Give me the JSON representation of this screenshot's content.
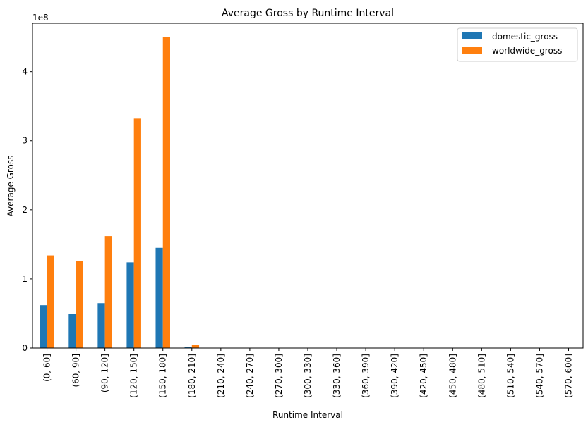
{
  "chart_data": {
    "type": "bar",
    "title": "Average Gross by Runtime Interval",
    "xlabel": "Runtime Interval",
    "ylabel": "Average Gross",
    "y_offset_label": "1e8",
    "ylim": [
      0,
      470000000
    ],
    "yticks": [
      0,
      100000000,
      200000000,
      300000000,
      400000000
    ],
    "ytick_labels": [
      "0",
      "1",
      "2",
      "3",
      "4"
    ],
    "legend_position": "top-right",
    "grid": false,
    "categories": [
      "(0, 60]",
      "(60, 90]",
      "(90, 120]",
      "(120, 150]",
      "(150, 180]",
      "(180, 210]",
      "(210, 240]",
      "(240, 270]",
      "(270, 300]",
      "(300, 330]",
      "(330, 360]",
      "(360, 390]",
      "(390, 420]",
      "(420, 450]",
      "(450, 480]",
      "(480, 510]",
      "(510, 540]",
      "(540, 570]",
      "(570, 600]"
    ],
    "series": [
      {
        "name": "domestic_gross",
        "color": "#1f77b4",
        "values": [
          62000000,
          49000000,
          65000000,
          124000000,
          145000000,
          1000000,
          0,
          0,
          0,
          0,
          0,
          0,
          0,
          0,
          0,
          0,
          0,
          0,
          0
        ]
      },
      {
        "name": "worldwide_gross",
        "color": "#ff7f0e",
        "values": [
          134000000,
          126000000,
          162000000,
          332000000,
          450000000,
          5000000,
          0,
          0,
          0,
          0,
          0,
          0,
          0,
          0,
          0,
          0,
          0,
          0,
          0
        ]
      }
    ]
  }
}
